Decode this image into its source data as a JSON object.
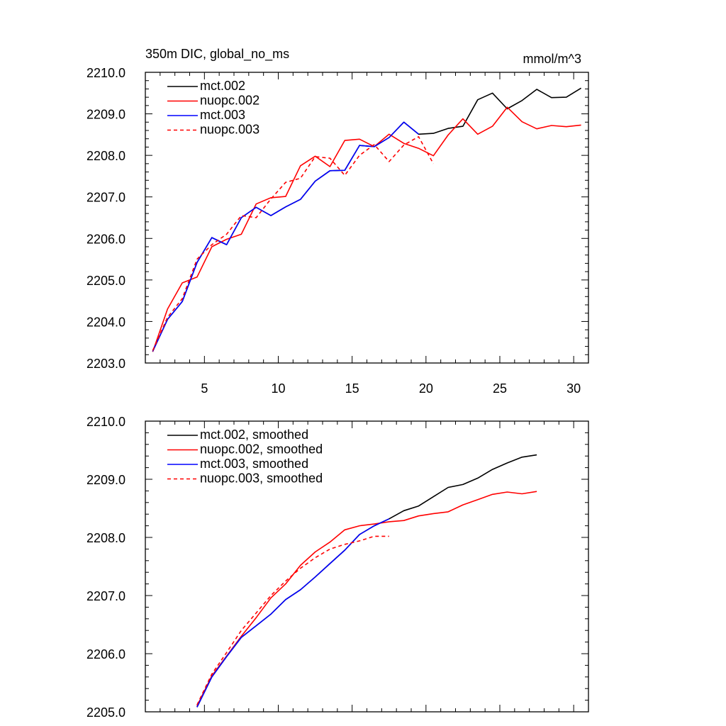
{
  "chart_data": [
    {
      "type": "line",
      "title": "350m DIC, global_no_ms",
      "units": "mmol/m^3",
      "xlabel": "",
      "ylabel": "",
      "xlim": [
        1.0,
        31.0
      ],
      "ylim": [
        2203.0,
        2210.0
      ],
      "x_ticks": [
        5,
        10,
        15,
        20,
        25,
        30
      ],
      "y_ticks": [
        2203.0,
        2204.0,
        2205.0,
        2206.0,
        2207.0,
        2208.0,
        2209.0,
        2210.0
      ],
      "y_tick_labels": [
        "2203.0",
        "2204.0",
        "2205.0",
        "2206.0",
        "2207.0",
        "2208.0",
        "2209.0",
        "2210.0"
      ],
      "x_tick_labels": [
        "5",
        "10",
        "15",
        "20",
        "25",
        "30"
      ],
      "legend": "top-left",
      "series": [
        {
          "name": "mct.002",
          "color": "#000000",
          "dash": "solid",
          "x": [
            1.5,
            2.5,
            3.5,
            4.5,
            5.5,
            6.5,
            7.5,
            8.5,
            9.5,
            10.5,
            11.5,
            12.5,
            13.5,
            14.5,
            15.5,
            16.5,
            17.5,
            18.5,
            19.5,
            20.5,
            21.5,
            22.5,
            23.5,
            24.5,
            25.5,
            26.5,
            27.5,
            28.5,
            29.5,
            30.5
          ],
          "values": [
            2203.28,
            2204.05,
            2204.48,
            2205.42,
            2206.02,
            2205.85,
            2206.5,
            2206.75,
            2206.55,
            2206.76,
            2206.94,
            2207.38,
            2207.63,
            2207.64,
            2208.24,
            2208.21,
            2208.43,
            2208.8,
            2208.51,
            2208.53,
            2208.65,
            2208.7,
            2209.34,
            2209.5,
            2209.12,
            2209.32,
            2209.59,
            2209.39,
            2209.4,
            2209.62
          ]
        },
        {
          "name": "nuopc.002",
          "color": "#ff0000",
          "dash": "solid",
          "x": [
            1.5,
            2.5,
            3.5,
            4.5,
            5.5,
            6.5,
            7.5,
            8.5,
            9.5,
            10.5,
            11.5,
            12.5,
            13.5,
            14.5,
            15.5,
            16.5,
            17.5,
            18.5,
            19.5,
            20.5,
            21.5,
            22.5,
            23.5,
            24.5,
            25.5,
            26.5,
            27.5,
            28.5,
            29.5,
            30.5
          ],
          "values": [
            2203.27,
            2204.3,
            2204.93,
            2205.07,
            2205.8,
            2205.98,
            2206.1,
            2206.83,
            2206.98,
            2207.01,
            2207.75,
            2207.98,
            2207.73,
            2208.36,
            2208.39,
            2208.21,
            2208.51,
            2208.29,
            2208.17,
            2207.99,
            2208.49,
            2208.88,
            2208.51,
            2208.7,
            2209.16,
            2208.81,
            2208.64,
            2208.72,
            2208.69,
            2208.73
          ]
        },
        {
          "name": "mct.003",
          "color": "#0000ff",
          "dash": "solid",
          "x": [
            1.5,
            2.5,
            3.5,
            4.5,
            5.5,
            6.5,
            7.5,
            8.5,
            9.5,
            10.5,
            11.5,
            12.5,
            13.5,
            14.5,
            15.5,
            16.5,
            17.5,
            18.5,
            19.5
          ],
          "values": [
            2203.28,
            2204.05,
            2204.48,
            2205.42,
            2206.02,
            2205.85,
            2206.5,
            2206.75,
            2206.55,
            2206.76,
            2206.94,
            2207.38,
            2207.63,
            2207.64,
            2208.24,
            2208.21,
            2208.43,
            2208.8,
            2208.51
          ]
        },
        {
          "name": "nuopc.003",
          "color": "#ff0000",
          "dash": "dashed",
          "x": [
            1.5,
            2.5,
            3.5,
            4.5,
            5.5,
            6.5,
            7.5,
            8.5,
            9.5,
            10.5,
            11.5,
            12.5,
            13.5,
            14.5,
            15.5,
            16.5,
            17.5,
            18.5,
            19.5,
            20.5
          ],
          "values": [
            2203.3,
            2204.1,
            2204.55,
            2205.5,
            2205.85,
            2206.1,
            2206.55,
            2206.5,
            2206.95,
            2207.35,
            2207.45,
            2207.97,
            2207.93,
            2207.52,
            2208.0,
            2208.26,
            2207.85,
            2208.25,
            2208.45,
            2207.8
          ]
        }
      ]
    },
    {
      "type": "line",
      "title": "",
      "xlabel": "",
      "ylabel": "",
      "xlim": [
        1.0,
        31.0
      ],
      "ylim": [
        2205.0,
        2210.0
      ],
      "x_ticks": [
        5,
        10,
        15,
        20,
        25,
        30
      ],
      "y_ticks": [
        2205.0,
        2206.0,
        2207.0,
        2208.0,
        2209.0,
        2210.0
      ],
      "y_tick_labels": [
        "2205.0",
        "2206.0",
        "2207.0",
        "2208.0",
        "2209.0",
        "2210.0"
      ],
      "legend": "top-left",
      "series": [
        {
          "name": "mct.002, smoothed",
          "color": "#000000",
          "dash": "solid",
          "x": [
            4.5,
            5.5,
            6.5,
            7.5,
            8.5,
            9.5,
            10.5,
            11.5,
            12.5,
            13.5,
            14.5,
            15.5,
            16.5,
            17.5,
            18.5,
            19.5,
            20.5,
            21.5,
            22.5,
            23.5,
            24.5,
            25.5,
            26.5,
            27.5
          ],
          "values": [
            2205.08,
            2205.6,
            2205.95,
            2206.28,
            2206.48,
            2206.68,
            2206.93,
            2207.1,
            2207.32,
            2207.55,
            2207.78,
            2208.05,
            2208.2,
            2208.32,
            2208.46,
            2208.54,
            2208.7,
            2208.86,
            2208.91,
            2209.02,
            2209.17,
            2209.28,
            2209.38,
            2209.42
          ]
        },
        {
          "name": "nuopc.002, smoothed",
          "color": "#ff0000",
          "dash": "solid",
          "x": [
            4.5,
            5.5,
            6.5,
            7.5,
            8.5,
            9.5,
            10.5,
            11.5,
            12.5,
            13.5,
            14.5,
            15.5,
            16.5,
            17.5,
            18.5,
            19.5,
            20.5,
            21.5,
            22.5,
            23.5,
            24.5,
            25.5,
            26.5,
            27.5
          ],
          "values": [
            2205.1,
            2205.62,
            2205.96,
            2206.3,
            2206.62,
            2206.96,
            2207.2,
            2207.52,
            2207.75,
            2207.92,
            2208.13,
            2208.2,
            2208.23,
            2208.27,
            2208.29,
            2208.37,
            2208.41,
            2208.44,
            2208.56,
            2208.65,
            2208.74,
            2208.78,
            2208.75,
            2208.79
          ]
        },
        {
          "name": "mct.003, smoothed",
          "color": "#0000ff",
          "dash": "solid",
          "x": [
            4.5,
            5.5,
            6.5,
            7.5,
            8.5,
            9.5,
            10.5,
            11.5,
            12.5,
            13.5,
            14.5,
            15.5,
            16.5,
            17.5
          ],
          "values": [
            2205.08,
            2205.6,
            2205.95,
            2206.28,
            2206.48,
            2206.68,
            2206.93,
            2207.1,
            2207.32,
            2207.55,
            2207.78,
            2208.05,
            2208.2,
            2208.32
          ]
        },
        {
          "name": "nuopc.003, smoothed",
          "color": "#ff0000",
          "dash": "dashed",
          "x": [
            4.5,
            5.5,
            6.5,
            7.5,
            8.5,
            9.5,
            10.5,
            11.5,
            12.5,
            13.5,
            14.5,
            15.5,
            16.5,
            17.5
          ],
          "values": [
            2205.12,
            2205.65,
            2206.02,
            2206.4,
            2206.7,
            2207.0,
            2207.25,
            2207.47,
            2207.65,
            2207.8,
            2207.88,
            2207.94,
            2208.02,
            2208.02
          ]
        }
      ]
    }
  ]
}
